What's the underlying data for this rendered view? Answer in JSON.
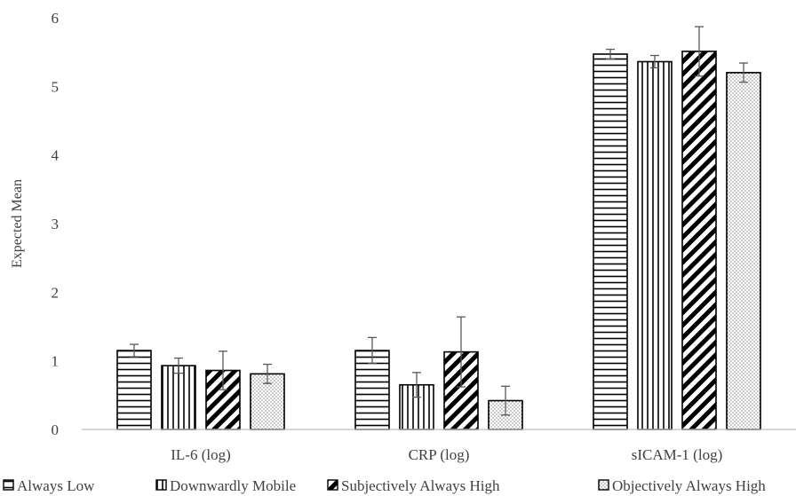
{
  "chart_data": {
    "type": "bar",
    "title": "",
    "xlabel": "",
    "ylabel": "Expected Mean",
    "ylim": [
      0,
      6
    ],
    "yticks": [
      "0",
      "1",
      "2",
      "3",
      "4",
      "5",
      "6"
    ],
    "grid": false,
    "legend_position": "bottom",
    "categories": [
      "IL-6 (log)",
      "CRP (log)",
      "sICAM-1 (log)"
    ],
    "series": [
      {
        "name": "Always Low",
        "pattern": "horizontal-lines",
        "values": [
          1.15,
          1.15,
          5.47
        ],
        "error": [
          0.09,
          0.19,
          0.07
        ]
      },
      {
        "name": "Downwardly Mobile",
        "pattern": "vertical-lines",
        "values": [
          0.93,
          0.65,
          5.36
        ],
        "error": [
          0.11,
          0.18,
          0.09
        ]
      },
      {
        "name": "Subjectively Always High",
        "pattern": "diagonal-lines",
        "values": [
          0.86,
          1.13,
          5.51
        ],
        "error": [
          0.28,
          0.51,
          0.36
        ]
      },
      {
        "name": "Objectively Always High",
        "pattern": "dots",
        "values": [
          0.81,
          0.42,
          5.2
        ],
        "error": [
          0.14,
          0.21,
          0.14
        ]
      }
    ],
    "colors": {
      "bar_stroke": "#000000",
      "axis": "#bfbfbf",
      "error_bar": "#595959",
      "text": "#404040"
    }
  }
}
